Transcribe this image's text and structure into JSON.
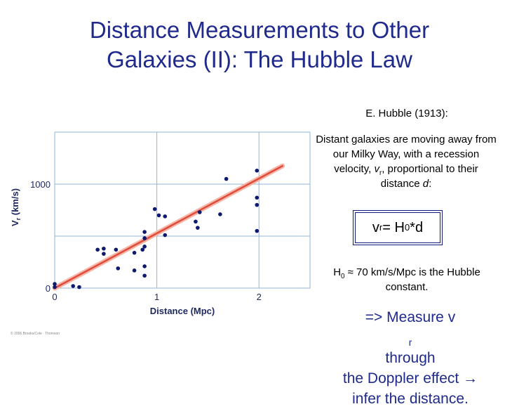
{
  "slide": {
    "title_line1": "Distance Measurements to Other",
    "title_line2": "Galaxies (II): The Hubble Law",
    "credit": "E. Hubble (1913):",
    "desc_part1": "Distant galaxies are moving away from our Milky Way, with a recession velocity, ",
    "desc_v": "v",
    "desc_r": "r",
    "desc_part2": ", proportional to their distance ",
    "desc_d": "d",
    "desc_colon": ":",
    "formula_v": "v",
    "formula_r": "r",
    "formula_eq": " = H",
    "formula_0": "0",
    "formula_d": "*d",
    "const_h": "H",
    "const_0": "0",
    "const_text": " ≈ 70 km/s/Mpc is the Hubble constant.",
    "method_line1_a": "=> Measure v",
    "method_line1_r": "r",
    "method_line1_b": " through",
    "method_line2": "the Doppler effect → ",
    "method_line3": "infer the distance.",
    "watermark": "© 2006 Brooks/Cole · Thomson"
  },
  "chart_data": {
    "type": "scatter",
    "title": "",
    "xlabel": "Distance (Mpc)",
    "ylabel": "Vr (km/s)",
    "xlim": [
      0,
      2.5
    ],
    "ylim": [
      0,
      1500
    ],
    "xticks": [
      "0",
      "1",
      "2"
    ],
    "yticks": [
      "0",
      "1000"
    ],
    "grid": true,
    "series": [
      {
        "values": [
          [
            0.0,
            40
          ],
          [
            0.0,
            10
          ],
          [
            0.18,
            20
          ],
          [
            0.24,
            10
          ],
          [
            0.42,
            370
          ],
          [
            0.48,
            380
          ],
          [
            0.48,
            330
          ],
          [
            0.6,
            370
          ],
          [
            0.62,
            190
          ],
          [
            0.78,
            170
          ],
          [
            0.78,
            340
          ],
          [
            0.86,
            370
          ],
          [
            0.88,
            400
          ],
          [
            0.88,
            480
          ],
          [
            0.88,
            540
          ],
          [
            0.88,
            120
          ],
          [
            0.88,
            210
          ],
          [
            0.98,
            760
          ],
          [
            1.02,
            700
          ],
          [
            1.08,
            690
          ],
          [
            1.08,
            510
          ],
          [
            1.38,
            640
          ],
          [
            1.4,
            580
          ],
          [
            1.42,
            730
          ],
          [
            1.62,
            710
          ],
          [
            1.68,
            1050
          ],
          [
            1.98,
            1130
          ],
          [
            1.98,
            870
          ],
          [
            1.98,
            800
          ],
          [
            1.98,
            550
          ]
        ]
      }
    ],
    "fit_line": {
      "x": [
        0,
        2.23
      ],
      "y": [
        0,
        1175
      ]
    },
    "colors": {
      "points": "#0d1a6e",
      "fit": "#e04b3c",
      "grid": "#8fb7d9",
      "axis_text": "#1f2a60"
    }
  }
}
